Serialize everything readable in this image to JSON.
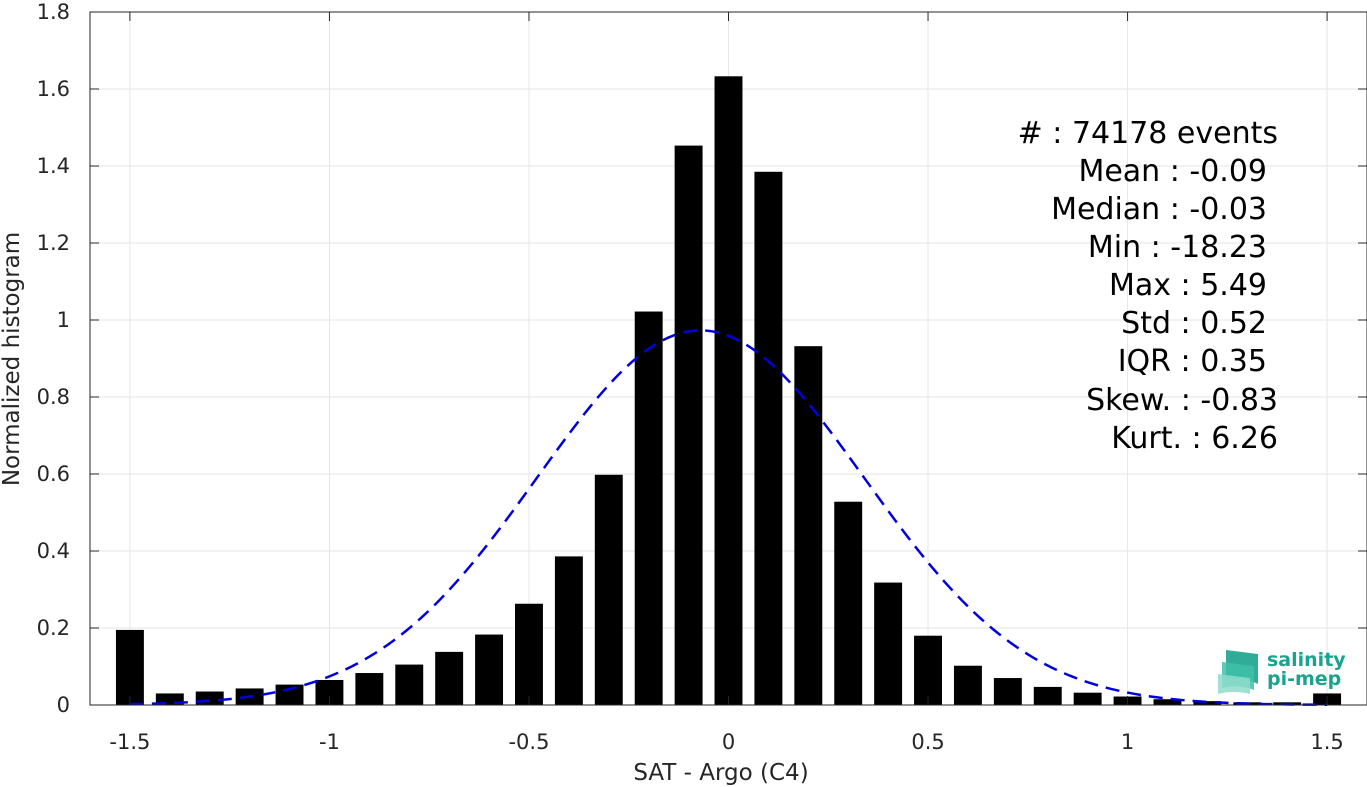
{
  "chart_data": {
    "type": "bar",
    "xlabel": "SAT - Argo (C4)",
    "ylabel": "Normalized histogram",
    "xlim": [
      -1.6,
      1.6
    ],
    "ylim": [
      0,
      1.8
    ],
    "xticks": [
      -1.5,
      -1,
      -0.5,
      0,
      0.5,
      1,
      1.5
    ],
    "xtick_labels": [
      "-1.5",
      "-1",
      "-0.5",
      "0",
      "0.5",
      "1",
      "1.5"
    ],
    "yticks": [
      0,
      0.2,
      0.4,
      0.6,
      0.8,
      1,
      1.2,
      1.4,
      1.6,
      1.8
    ],
    "ytick_labels": [
      "0",
      "0.2",
      "0.4",
      "0.6",
      "0.8",
      "1",
      "1.2",
      "1.4",
      "1.6",
      "1.8"
    ],
    "grid": true,
    "bar_color": "#000000",
    "fit_color": "#0000dd",
    "bars": {
      "x": [
        -1.5,
        -1.4,
        -1.3,
        -1.2,
        -1.1,
        -1.0,
        -0.9,
        -0.8,
        -0.7,
        -0.6,
        -0.5,
        -0.4,
        -0.3,
        -0.2,
        -0.1,
        0.0,
        0.1,
        0.2,
        0.3,
        0.4,
        0.5,
        0.6,
        0.7,
        0.8,
        0.9,
        1.0,
        1.1,
        1.2,
        1.3,
        1.4,
        1.5
      ],
      "values": [
        0.195,
        0.03,
        0.035,
        0.043,
        0.053,
        0.065,
        0.083,
        0.105,
        0.138,
        0.183,
        0.263,
        0.386,
        0.598,
        1.022,
        1.453,
        1.633,
        1.385,
        0.932,
        0.528,
        0.318,
        0.18,
        0.102,
        0.07,
        0.047,
        0.032,
        0.022,
        0.015,
        0.01,
        0.007,
        0.007,
        0.03
      ]
    },
    "normal_fit": {
      "mean": -0.07,
      "std": 0.41,
      "x_range": [
        -1.5,
        1.5
      ]
    },
    "stats": [
      "#  : 74178 events",
      "Mean : -0.09",
      "Median : -0.03",
      "Min : -18.23",
      "Max : 5.49",
      "Std : 0.52",
      "IQR : 0.35",
      "Skew. : -0.83",
      "Kurt. : 6.26"
    ]
  },
  "logo": {
    "line1": "salinity",
    "line2": "pi-mep",
    "accent": "#1aa38e"
  }
}
